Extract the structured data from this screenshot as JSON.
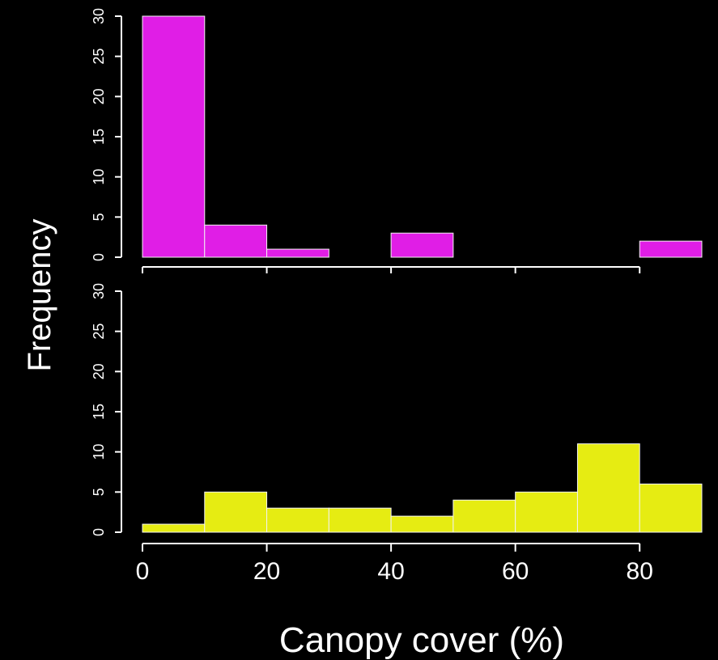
{
  "chart_data": [
    {
      "type": "bar",
      "panel": "top",
      "bin_edges": [
        0,
        10,
        20,
        30,
        40,
        50,
        60,
        70,
        80,
        90
      ],
      "values": [
        30,
        4,
        1,
        0,
        3,
        0,
        0,
        0,
        2
      ],
      "color": "#e01ee6",
      "ylim": [
        0,
        30
      ],
      "yticks": [
        0,
        5,
        10,
        15,
        20,
        25,
        30
      ],
      "xlim": [
        0,
        90
      ]
    },
    {
      "type": "bar",
      "panel": "bottom",
      "bin_edges": [
        0,
        10,
        20,
        30,
        40,
        50,
        60,
        70,
        80,
        90
      ],
      "values": [
        1,
        5,
        3,
        3,
        2,
        4,
        5,
        11,
        6
      ],
      "color": "#e6ec12",
      "ylim": [
        0,
        30
      ],
      "yticks": [
        0,
        5,
        10,
        15,
        20,
        25,
        30
      ],
      "xlim": [
        0,
        90
      ],
      "xticks": [
        0,
        20,
        40,
        60,
        80
      ]
    }
  ],
  "labels": {
    "ylabel": "Frequency",
    "xlabel": "Canopy cover (%)"
  },
  "colors": {
    "background": "#000000",
    "axis": "#ffffff",
    "bar_border": "#f2f2f2"
  }
}
